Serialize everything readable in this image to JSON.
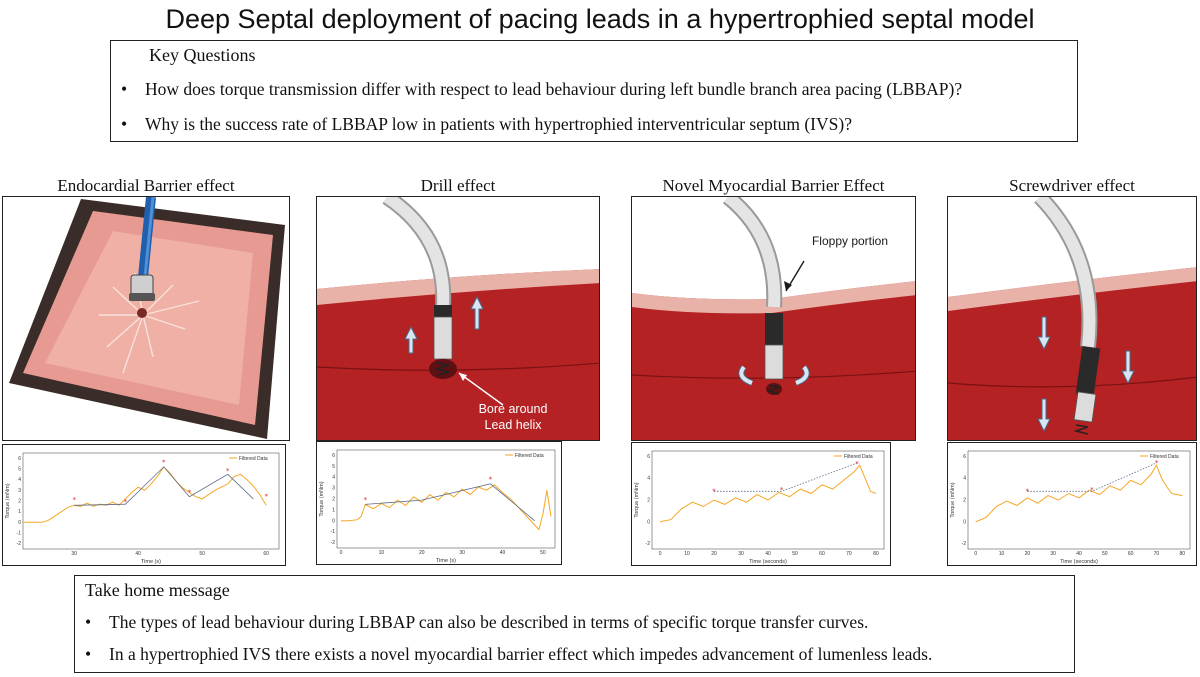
{
  "title": "Deep Septal deployment of pacing leads in a hypertrophied  septal model",
  "key_questions": {
    "heading": "Key Questions",
    "bullet": "•",
    "items": [
      "How does torque transmission differ with respect to lead behaviour during left bundle branch area pacing (LBBAP)?",
      "Why is the success rate of LBBAP low in patients with hypertrophied interventricular septum (IVS)?"
    ]
  },
  "panels": [
    {
      "label": "Endocardial Barrier effect"
    },
    {
      "label": "Drill effect",
      "callout_line1": "Bore around",
      "callout_line2": "Lead helix"
    },
    {
      "label": "Novel Myocardial Barrier Effect",
      "callout": "Floppy portion"
    },
    {
      "label": "Screwdriver effect"
    }
  ],
  "colors": {
    "myocardium": "#b42224",
    "myocardium_dark": "#8e1416",
    "endocardium": "#e9b2a8",
    "lead_body": "#d9d9d9",
    "trace": "#f5a623",
    "trend": "#5a6e8a",
    "marker": "#e02020",
    "arrow_fill": "#d8e6f2"
  },
  "chart_data": [
    {
      "type": "line",
      "legend": "Filtered Data",
      "xlabel": "Time (s)",
      "ylabel": "Torque (mNm)",
      "xlim": [
        22,
        62
      ],
      "ylim": [
        -2.5,
        6.5
      ],
      "xticks": [
        30,
        40,
        50,
        60
      ],
      "yticks": [
        -2,
        -1,
        0,
        1,
        2,
        3,
        4,
        5,
        6
      ],
      "series": [
        {
          "name": "Filtered Data",
          "x": [
            22,
            24,
            25,
            26,
            27,
            28,
            29,
            30,
            31,
            32,
            33,
            34,
            35,
            36,
            37,
            38,
            39,
            40,
            41,
            42,
            43,
            44,
            45,
            46,
            47,
            48,
            49,
            50,
            51,
            52,
            53,
            54,
            55,
            56,
            57,
            58,
            59,
            60
          ],
          "y": [
            0,
            0,
            0,
            0.2,
            0.6,
            1.0,
            1.4,
            1.6,
            1.5,
            1.8,
            1.5,
            1.7,
            1.6,
            1.9,
            1.6,
            2.2,
            2.8,
            3.3,
            3.0,
            3.6,
            4.3,
            5.2,
            4.6,
            3.8,
            3.2,
            2.8,
            2.4,
            2.2,
            2.6,
            3.0,
            3.3,
            3.6,
            4.3,
            4.5,
            4.0,
            3.4,
            2.6,
            1.6
          ]
        }
      ],
      "trend": {
        "x": [
          30,
          38,
          44,
          48,
          54,
          58
        ],
        "y": [
          1.6,
          1.7,
          5.2,
          2.4,
          4.5,
          2.2
        ]
      },
      "markers": {
        "x": [
          30,
          38,
          44,
          48,
          54,
          60
        ],
        "y": [
          2.1,
          1.9,
          5.6,
          2.8,
          4.8,
          2.4
        ]
      }
    },
    {
      "type": "line",
      "legend": "Filtered Data",
      "xlabel": "Time (s)",
      "ylabel": "Torque (mNm)",
      "xlim": [
        -1,
        53
      ],
      "ylim": [
        -2.5,
        6.5
      ],
      "xticks": [
        0,
        10,
        20,
        30,
        40,
        50
      ],
      "yticks": [
        -2,
        -1,
        0,
        1,
        2,
        3,
        4,
        5,
        6
      ],
      "series": [
        {
          "name": "Filtered Data",
          "x": [
            0,
            2,
            4,
            5,
            6,
            8,
            10,
            12,
            14,
            16,
            18,
            20,
            22,
            24,
            26,
            28,
            30,
            32,
            34,
            36,
            38,
            40,
            42,
            44,
            46,
            48,
            49,
            50,
            51,
            52
          ],
          "y": [
            0,
            0,
            0.1,
            0.4,
            1.5,
            1.1,
            1.6,
            1.2,
            1.9,
            1.4,
            2.2,
            1.7,
            2.4,
            1.9,
            2.6,
            2.2,
            2.9,
            2.4,
            3.1,
            2.8,
            3.3,
            2.6,
            2.0,
            1.2,
            0.4,
            -0.4,
            -0.8,
            0.6,
            2.8,
            0.4
          ]
        }
      ],
      "trend": {
        "x": [
          6,
          20,
          37,
          48
        ],
        "y": [
          1.5,
          1.9,
          3.4,
          0
        ]
      },
      "markers": {
        "x": [
          6,
          37
        ],
        "y": [
          1.9,
          3.8
        ]
      }
    },
    {
      "type": "line",
      "legend": "Filtered Data",
      "xlabel": "Time (seconds)",
      "ylabel": "Torque (mNm)",
      "xlim": [
        -3,
        83
      ],
      "ylim": [
        -2.5,
        6.5
      ],
      "xticks": [
        0,
        10,
        20,
        30,
        40,
        50,
        60,
        70,
        80
      ],
      "yticks": [
        -2,
        0,
        2,
        4,
        6
      ],
      "series": [
        {
          "name": "Filtered Data",
          "x": [
            0,
            4,
            8,
            12,
            16,
            20,
            24,
            28,
            32,
            36,
            40,
            44,
            48,
            52,
            56,
            60,
            64,
            68,
            72,
            74,
            76,
            78,
            80
          ],
          "y": [
            0,
            0.2,
            1.2,
            1.8,
            1.4,
            2.0,
            1.6,
            2.2,
            1.8,
            2.5,
            2.0,
            2.7,
            2.3,
            3.0,
            2.6,
            3.4,
            3.0,
            3.8,
            4.6,
            5.2,
            4.0,
            2.8,
            2.6
          ]
        }
      ],
      "trend": {
        "x": [
          20,
          45,
          73
        ],
        "y": [
          2.8,
          2.8,
          5.4
        ]
      },
      "markers": {
        "x": [
          20,
          45,
          73
        ],
        "y": [
          2.8,
          2.9,
          5.3
        ]
      }
    },
    {
      "type": "line",
      "legend": "Filtered Data",
      "xlabel": "Time (seconds)",
      "ylabel": "Torque (mNm)",
      "xlim": [
        -3,
        83
      ],
      "ylim": [
        -2.5,
        6.5
      ],
      "xticks": [
        0,
        10,
        20,
        30,
        40,
        50,
        60,
        70,
        80
      ],
      "yticks": [
        -2,
        0,
        2,
        4,
        6
      ],
      "series": [
        {
          "name": "Filtered Data",
          "x": [
            0,
            4,
            8,
            12,
            16,
            20,
            24,
            28,
            32,
            36,
            40,
            44,
            48,
            52,
            56,
            60,
            64,
            68,
            70,
            72,
            74,
            76,
            80
          ],
          "y": [
            0,
            0.4,
            1.4,
            1.9,
            1.5,
            2.2,
            1.7,
            2.4,
            2.0,
            2.6,
            2.2,
            2.9,
            2.5,
            3.3,
            2.9,
            3.8,
            3.4,
            4.4,
            5.2,
            4.0,
            3.2,
            2.6,
            2.4
          ]
        }
      ],
      "trend": {
        "x": [
          20,
          45,
          70
        ],
        "y": [
          2.8,
          2.8,
          5.4
        ]
      },
      "markers": {
        "x": [
          20,
          45,
          70
        ],
        "y": [
          2.8,
          2.9,
          5.4
        ]
      }
    }
  ],
  "take_home": {
    "heading": "Take home message",
    "bullet": "•",
    "items": [
      "The types of lead behaviour during LBBAP can also  be described in terms of specific torque transfer curves.",
      "In a hypertrophied IVS there exists a novel myocardial barrier effect which impedes advancement of lumenless leads."
    ]
  }
}
